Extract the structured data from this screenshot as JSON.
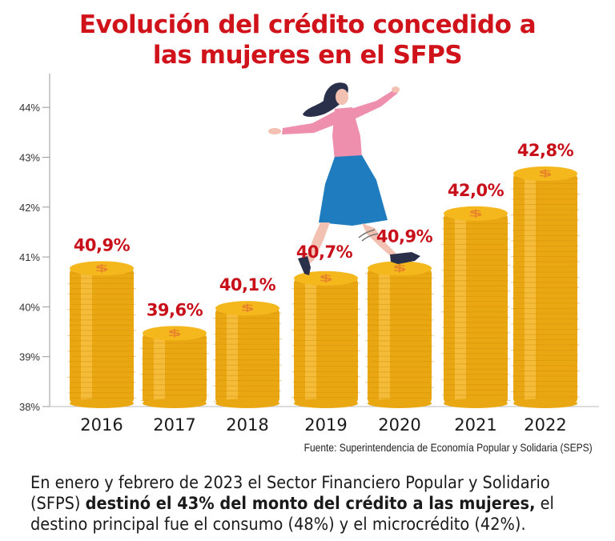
{
  "title_line1": "Evolución del crédito concedido a",
  "title_line2": "las mujeres en el SFPS",
  "source": "Fuente:  Superintendencia de Economía Popular y Solidaria (SEPS)",
  "note": {
    "part1": "En enero y febrero de 2023 el Sector Financiero Popular y Solidario (SFPS) ",
    "bold": "destinó el 43% del monto del crédito a las mujeres,",
    "part2": " el destino principal fue el consumo (48%) y el microcrédito (42%)."
  },
  "colors": {
    "title": "#d0121b",
    "label": "#c8101a",
    "coin_face": "#f4b81d",
    "coin_side": "#e9a712",
    "coin_shadow": "#d7900b",
    "dollar": "#e8842a",
    "axis": "#9a9a9a",
    "skirt": "#1f7cbf",
    "blouse": "#ef8fae",
    "hair": "#2a2f4a",
    "skin": "#f3c1b1"
  },
  "chart_data": {
    "type": "bar",
    "title": "Evolución del crédito concedido a las mujeres en el SFPS",
    "xlabel": "",
    "ylabel": "",
    "categories": [
      "2016",
      "2017",
      "2018",
      "2019",
      "2020",
      "2021",
      "2022"
    ],
    "values": [
      40.9,
      39.6,
      40.1,
      40.7,
      40.9,
      42.0,
      42.8
    ],
    "data_labels": [
      "40,9%",
      "39,6%",
      "40,1%",
      "40,7%",
      "40,9%",
      "42,0%",
      "42,8%"
    ],
    "yticks": [
      38,
      39,
      40,
      41,
      42,
      43,
      44
    ],
    "ytick_labels": [
      "38%",
      "39%",
      "40%",
      "41%",
      "42%",
      "43%",
      "44%"
    ],
    "ylim": [
      38,
      44.7
    ],
    "grid": false,
    "legend": "none",
    "bar_style": "coin stacks",
    "annotation": "illustration of woman stepping across coin stacks"
  }
}
